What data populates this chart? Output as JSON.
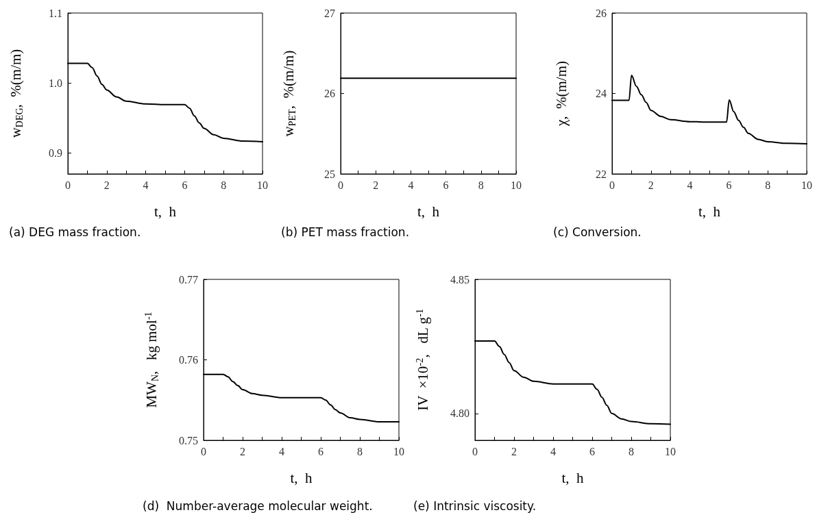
{
  "chart_data": [
    {
      "type": "line",
      "title": "(a) DEG mass fraction.",
      "xlabel": "t,  h",
      "ylabel": "w$_{DEG}$,  %(m/m)",
      "xlim": [
        0,
        10
      ],
      "xticks": [
        0,
        {
          "value": 1,
          "label": null
        },
        2,
        {
          "value": 3,
          "label": null
        },
        4,
        {
          "value": 5,
          "label": null
        },
        6,
        {
          "value": 7,
          "label": null
        },
        8,
        {
          "value": 9,
          "label": null
        },
        10
      ],
      "ylim": [
        0.87,
        1.1
      ],
      "yticks": [
        {
          "value": 0.9,
          "label": "0.9"
        },
        {
          "value": 1.0,
          "label": "1.0"
        },
        {
          "value": 1.1,
          "label": "1.1"
        }
      ],
      "grid": false,
      "marker": "none",
      "line_style": "solid",
      "series": [
        {
          "color": "#000000",
          "x": [
            0,
            1,
            1.25,
            1.5,
            1.75,
            2,
            2.5,
            3,
            4,
            5,
            6,
            6.25,
            6.5,
            6.75,
            7,
            7.5,
            8,
            9,
            10
          ],
          "values": [
            1.028,
            1.028,
            1.022,
            1.01,
            0.998,
            0.99,
            0.98,
            0.974,
            0.97,
            0.969,
            0.969,
            0.964,
            0.953,
            0.943,
            0.935,
            0.926,
            0.921,
            0.917,
            0.916
          ]
        }
      ]
    },
    {
      "type": "line",
      "title": "(b) PET mass fraction.",
      "xlabel": "t,  h",
      "ylabel": "w$_{PET}$,  %(m/m)",
      "xlim": [
        0,
        10
      ],
      "xticks": [
        0,
        {
          "value": 1,
          "label": null
        },
        2,
        {
          "value": 3,
          "label": null
        },
        4,
        {
          "value": 5,
          "label": null
        },
        6,
        {
          "value": 7,
          "label": null
        },
        8,
        {
          "value": 9,
          "label": null
        },
        10
      ],
      "ylim": [
        25,
        27
      ],
      "yticks": [
        25,
        26,
        27
      ],
      "grid": false,
      "marker": "none",
      "line_style": "solid",
      "series": [
        {
          "color": "#000000",
          "x": [
            0,
            5,
            10
          ],
          "values": [
            26.19,
            26.19,
            26.19
          ]
        }
      ]
    },
    {
      "type": "line",
      "title": "(c) Conversion.",
      "xlabel": "t,  h",
      "ylabel": "χ,  %(m/m)",
      "xlim": [
        0,
        10
      ],
      "xticks": [
        0,
        {
          "value": 1,
          "label": null
        },
        2,
        {
          "value": 3,
          "label": null
        },
        4,
        {
          "value": 5,
          "label": null
        },
        6,
        {
          "value": 7,
          "label": null
        },
        8,
        {
          "value": 9,
          "label": null
        },
        10
      ],
      "ylim": [
        22,
        26
      ],
      "yticks": [
        22,
        24,
        26
      ],
      "grid": false,
      "marker": "none",
      "line_style": "solid",
      "series": [
        {
          "color": "#000000",
          "x": [
            0,
            0.87,
            1.0,
            1.25,
            1.5,
            1.75,
            2,
            2.5,
            3,
            4,
            5,
            5.88,
            6.02,
            6.25,
            6.5,
            6.75,
            7,
            7.5,
            8,
            9,
            10
          ],
          "values": [
            23.83,
            23.83,
            24.45,
            24.18,
            23.97,
            23.78,
            23.58,
            23.43,
            23.35,
            23.3,
            23.29,
            23.29,
            23.84,
            23.55,
            23.33,
            23.16,
            23.01,
            22.86,
            22.8,
            22.76,
            22.75
          ]
        }
      ]
    },
    {
      "type": "line",
      "title": "(d)  Number-average molecular weight.",
      "xlabel": "t,  h",
      "ylabel": "MW$_{N}$,   kg mol$^{-1}$",
      "xlim": [
        0,
        10
      ],
      "xticks": [
        0,
        {
          "value": 1,
          "label": null
        },
        2,
        {
          "value": 3,
          "label": null
        },
        4,
        {
          "value": 5,
          "label": null
        },
        6,
        {
          "value": 7,
          "label": null
        },
        8,
        {
          "value": 9,
          "label": null
        },
        10
      ],
      "ylim": [
        0.75,
        0.77
      ],
      "yticks": [
        0.75,
        0.76,
        0.77
      ],
      "grid": false,
      "marker": "none",
      "line_style": "solid",
      "series": [
        {
          "color": "#000000",
          "x": [
            0,
            1,
            1.25,
            1.5,
            1.75,
            2,
            2.5,
            3,
            4,
            5,
            6,
            6.25,
            6.5,
            6.75,
            7,
            7.5,
            8,
            9,
            10
          ],
          "values": [
            0.7582,
            0.7582,
            0.7579,
            0.7573,
            0.7568,
            0.7563,
            0.7558,
            0.7556,
            0.7553,
            0.7553,
            0.7553,
            0.755,
            0.7544,
            0.7538,
            0.7534,
            0.7528,
            0.7526,
            0.7523,
            0.7523
          ]
        }
      ]
    },
    {
      "type": "line",
      "title": "(e) Intrinsic viscosity.",
      "xlabel": "t,  h",
      "ylabel": "IV  ×10$^{-2}$,   dL g$^{-1}$",
      "xlim": [
        0,
        10
      ],
      "xticks": [
        0,
        {
          "value": 1,
          "label": null
        },
        2,
        {
          "value": 3,
          "label": null
        },
        4,
        {
          "value": 5,
          "label": null
        },
        6,
        {
          "value": 7,
          "label": null
        },
        8,
        {
          "value": 9,
          "label": null
        },
        10
      ],
      "ylim": [
        4.79,
        4.85
      ],
      "yticks": [
        {
          "value": 4.8,
          "label": "4.80"
        },
        4.85
      ],
      "grid": false,
      "marker": "none",
      "line_style": "solid",
      "series": [
        {
          "color": "#000000",
          "x": [
            0,
            1,
            1.25,
            1.5,
            1.75,
            2,
            2.5,
            3,
            4,
            5,
            6,
            6.25,
            6.5,
            6.75,
            7,
            7.5,
            8,
            9,
            10
          ],
          "values": [
            4.827,
            4.827,
            4.825,
            4.822,
            4.819,
            4.816,
            4.8135,
            4.812,
            4.811,
            4.811,
            4.811,
            4.809,
            4.806,
            4.803,
            4.8,
            4.798,
            4.797,
            4.7962,
            4.796
          ]
        }
      ]
    }
  ]
}
